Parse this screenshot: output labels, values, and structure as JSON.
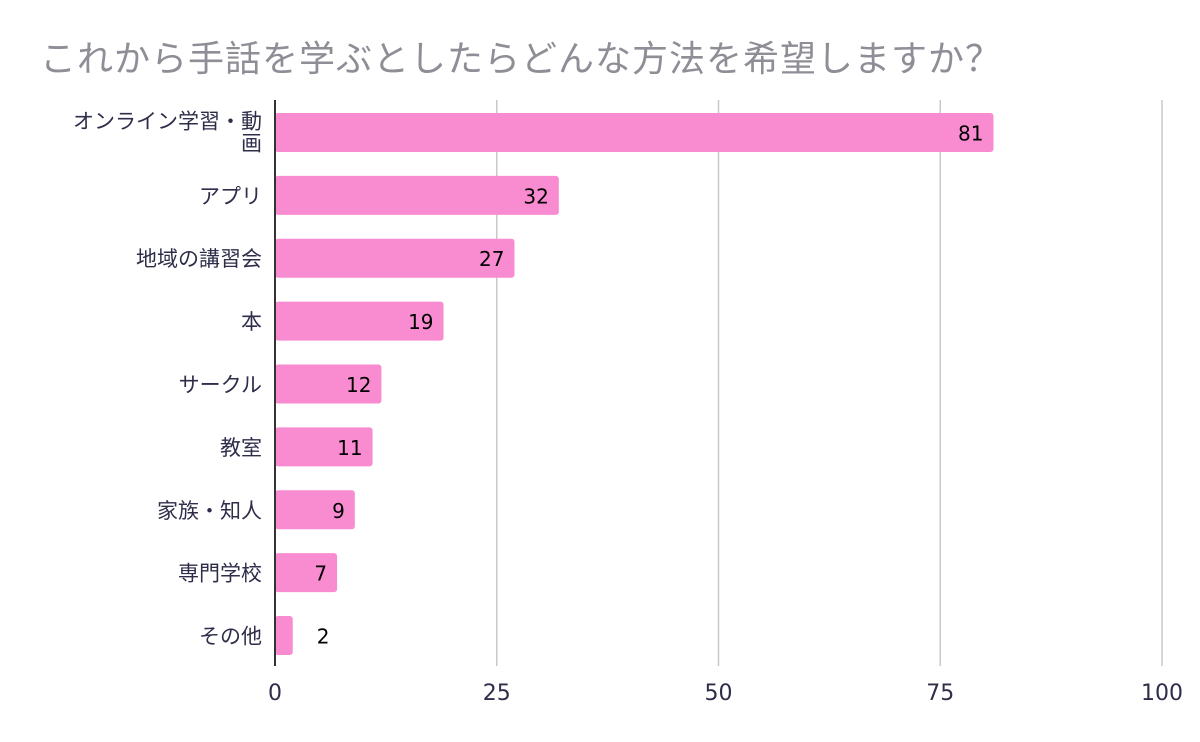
{
  "chart_data": {
    "type": "bar",
    "orientation": "horizontal",
    "title": "これから手話を学ぶとしたらどんな方法を希望しますか？",
    "xlabel": "",
    "ylabel": "",
    "xlim": [
      0,
      100
    ],
    "xticks": [
      "0",
      "25",
      "50",
      "75",
      "100"
    ],
    "grid": "vertical",
    "legend": "none",
    "bar_color": "#f98bd0",
    "outside_label_color": "#f08bc6",
    "categories": [
      "オンライン学習・動画",
      "アプリ",
      "地域の講習会",
      "本",
      "サークル",
      "教室",
      "家族・知人",
      "専門学校",
      "その他"
    ],
    "values": [
      81,
      32,
      27,
      19,
      12,
      11,
      9,
      7,
      2
    ]
  }
}
